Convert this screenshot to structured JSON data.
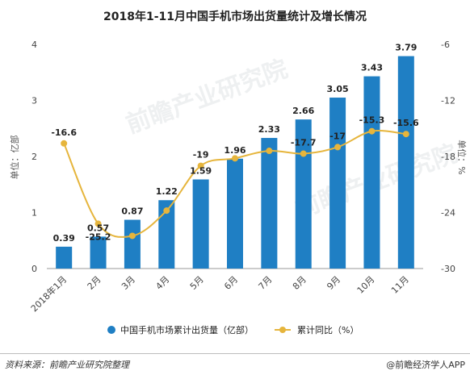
{
  "chart_data": {
    "type": "bar+line",
    "title": "2018年1-11月中国手机市场出货量统计及增长情况",
    "categories": [
      "2018年1月",
      "2月",
      "3月",
      "4月",
      "5月",
      "6月",
      "7月",
      "8月",
      "9月",
      "10月",
      "11月"
    ],
    "series": [
      {
        "name": "中国手机市场累计出货量（亿部）",
        "type": "bar",
        "axis": "left",
        "color": "#1f7fc4",
        "values": [
          0.39,
          0.57,
          0.87,
          1.22,
          1.59,
          1.96,
          2.33,
          2.66,
          3.05,
          3.43,
          3.79
        ]
      },
      {
        "name": "累计同比（%）",
        "type": "line",
        "axis": "right",
        "color": "#e6b53c",
        "values": [
          -16.6,
          -25.2,
          -26.5,
          -23.8,
          -19,
          -18.2,
          -17.4,
          -17.7,
          -17,
          -15.3,
          -15.6
        ],
        "labels": [
          "-16.6",
          "-25.2",
          "",
          "",
          "-19",
          "",
          "",
          "-17.7",
          "-17",
          "-15.3",
          "-15.6"
        ]
      }
    ],
    "ylabel_left": "单位：亿部",
    "ylabel_right": "单位：%",
    "ylim_left": [
      0,
      4
    ],
    "yticks_left": [
      0,
      1,
      2,
      3,
      4
    ],
    "ylim_right": [
      -30,
      -6
    ],
    "yticks_right": [
      -30,
      -24,
      -18,
      -12,
      -6
    ],
    "legend": "bottom",
    "grid": false
  },
  "watermark": "前瞻产业研究院",
  "footer": {
    "source": "资料来源：前瞻产业研究院整理",
    "brand": "@前瞻经济学人APP"
  }
}
